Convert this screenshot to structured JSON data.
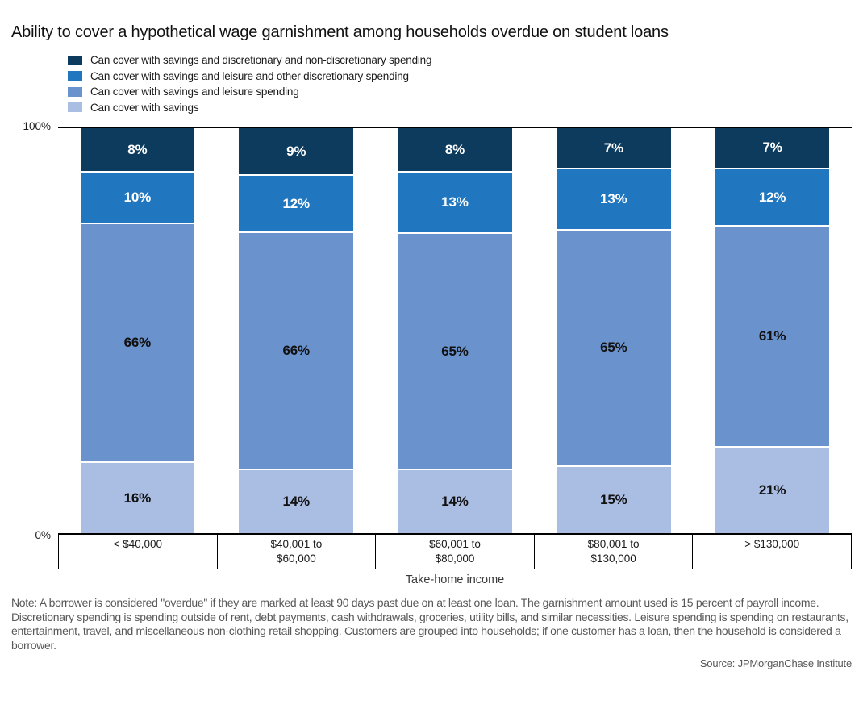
{
  "title": "Ability to cover a hypothetical wage garnishment among households overdue on student loans",
  "note": "Note: A borrower is considered \"overdue\" if they are marked at least 90 days past due on at least one loan. The garnishment amount used is 15 percent of payroll income. Discretionary spending is spending outside of rent, debt payments, cash withdrawals, groceries, utility bills, and similar necessities. Leisure spending is spending on restaurants, entertainment, travel, and miscellaneous non-clothing retail shopping. Customers are grouped into households; if one customer has a loan, then the household is considered a borrower.",
  "source": "Source: JPMorganChase Institute",
  "chart_data": {
    "type": "bar",
    "stacked": true,
    "orientation": "vertical",
    "title": "Ability to cover a hypothetical wage garnishment among households overdue on student loans",
    "xlabel": "Take-home income",
    "ylabel": "",
    "y_axis": {
      "top_label": "100%",
      "bottom_label": "0%",
      "range": [
        0,
        100
      ]
    },
    "grid": false,
    "legend_position": "top-left",
    "value_suffix": "%",
    "categories": [
      "< $40,000",
      "$40,001 to\n$60,000",
      "$60,001 to\n$80,000",
      "$80,001 to\n$130,000",
      "> $130,000"
    ],
    "series": [
      {
        "name": "Can cover with savings and discretionary and non-discretionary spending",
        "color": "#0d3b5e",
        "label_color": "#ffffff",
        "values": [
          8,
          9,
          8,
          7,
          7
        ]
      },
      {
        "name": "Can cover with savings and leisure and other discretionary spending",
        "color": "#2077c0",
        "label_color": "#ffffff",
        "values": [
          10,
          12,
          13,
          13,
          12
        ]
      },
      {
        "name": "Can cover with savings and leisure spending",
        "color": "#6a92cd",
        "label_color": "#111111",
        "values": [
          66,
          66,
          65,
          65,
          61
        ]
      },
      {
        "name": "Can cover with savings",
        "color": "#aabde2",
        "label_color": "#111111",
        "values": [
          16,
          14,
          14,
          15,
          21
        ]
      }
    ]
  }
}
